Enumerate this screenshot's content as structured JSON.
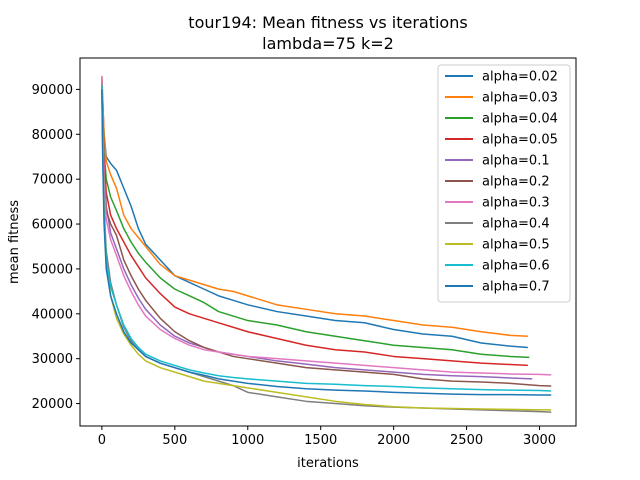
{
  "chart_data": {
    "type": "line",
    "title": "tour194: Mean fitness vs iterations",
    "subtitle": "lambda=75 k=2",
    "xlabel": "iterations",
    "ylabel": "mean fitness",
    "xlim": [
      -150,
      3250
    ],
    "ylim": [
      15000,
      97000
    ],
    "xticks": [
      0,
      500,
      1000,
      1500,
      2000,
      2500,
      3000
    ],
    "yticks": [
      20000,
      30000,
      40000,
      50000,
      60000,
      70000,
      80000,
      90000
    ],
    "grid": false,
    "legend_position": "top-right",
    "series": [
      {
        "name": "alpha=0.02",
        "color": "#1f77b4",
        "x": [
          0,
          5,
          15,
          30,
          60,
          100,
          150,
          200,
          250,
          300,
          400,
          500,
          600,
          700,
          800,
          900,
          1000,
          1200,
          1400,
          1600,
          1800,
          2000,
          2200,
          2400,
          2600,
          2800,
          2920
        ],
        "y": [
          92500,
          88000,
          80000,
          75000,
          73500,
          72000,
          68000,
          64000,
          59000,
          55500,
          52000,
          48500,
          47000,
          45500,
          44000,
          43000,
          42000,
          40500,
          39500,
          38500,
          38000,
          36500,
          35500,
          35000,
          33500,
          32800,
          32500
        ]
      },
      {
        "name": "alpha=0.03",
        "color": "#ff7f0e",
        "x": [
          0,
          5,
          15,
          30,
          60,
          100,
          150,
          200,
          250,
          300,
          400,
          500,
          600,
          700,
          800,
          900,
          1000,
          1200,
          1400,
          1600,
          1800,
          2000,
          2200,
          2400,
          2600,
          2800,
          2920
        ],
        "y": [
          93000,
          88500,
          80000,
          74000,
          71000,
          68000,
          62000,
          59000,
          57000,
          55000,
          51000,
          48500,
          47500,
          46500,
          45500,
          45000,
          44000,
          42000,
          41000,
          40000,
          39500,
          38500,
          37500,
          37000,
          36000,
          35200,
          35000
        ]
      },
      {
        "name": "alpha=0.04",
        "color": "#2ca02c",
        "x": [
          0,
          5,
          15,
          30,
          60,
          100,
          150,
          200,
          250,
          300,
          400,
          500,
          600,
          700,
          800,
          900,
          1000,
          1200,
          1400,
          1600,
          1800,
          2000,
          2200,
          2400,
          2600,
          2800,
          2930
        ],
        "y": [
          91000,
          86000,
          76000,
          70000,
          66000,
          63000,
          59000,
          56000,
          53500,
          51500,
          48000,
          45500,
          44000,
          42500,
          40500,
          39500,
          38500,
          37500,
          36000,
          35000,
          34000,
          33000,
          32500,
          32000,
          31000,
          30500,
          30300
        ]
      },
      {
        "name": "alpha=0.05",
        "color": "#d62728",
        "x": [
          0,
          5,
          15,
          30,
          60,
          100,
          150,
          200,
          250,
          300,
          400,
          500,
          600,
          700,
          800,
          900,
          1000,
          1200,
          1400,
          1600,
          1800,
          2000,
          2200,
          2400,
          2600,
          2800,
          2920
        ],
        "y": [
          91000,
          85000,
          74000,
          67000,
          62000,
          59000,
          56000,
          53000,
          50500,
          48000,
          44500,
          41500,
          40000,
          39000,
          38000,
          37000,
          36000,
          34500,
          33000,
          32000,
          31500,
          30500,
          30000,
          29500,
          29000,
          28700,
          28500
        ]
      },
      {
        "name": "alpha=0.1",
        "color": "#9467bd",
        "x": [
          0,
          5,
          15,
          30,
          60,
          100,
          150,
          200,
          250,
          300,
          400,
          500,
          600,
          700,
          800,
          900,
          1000,
          1200,
          1400,
          1600,
          1800,
          2000,
          2200,
          2400,
          2600,
          2800,
          2950
        ],
        "y": [
          91000,
          84000,
          72000,
          64000,
          58000,
          54500,
          50000,
          46500,
          43500,
          41000,
          37500,
          35000,
          33500,
          32500,
          31500,
          31000,
          30500,
          29500,
          28800,
          28000,
          27500,
          27000,
          26500,
          26200,
          26000,
          25700,
          25500
        ]
      },
      {
        "name": "alpha=0.2",
        "color": "#8c564b",
        "x": [
          0,
          5,
          15,
          30,
          60,
          100,
          150,
          200,
          250,
          300,
          400,
          500,
          600,
          700,
          800,
          900,
          1000,
          1200,
          1400,
          1600,
          1800,
          2000,
          2200,
          2400,
          2600,
          2800,
          3000,
          3080
        ],
        "y": [
          92000,
          84000,
          72000,
          63000,
          60000,
          57500,
          52000,
          48500,
          45500,
          43000,
          39000,
          36000,
          34000,
          32500,
          31500,
          30500,
          30000,
          29000,
          28000,
          27500,
          27000,
          26500,
          25500,
          25000,
          24800,
          24500,
          24000,
          23900
        ]
      },
      {
        "name": "alpha=0.3",
        "color": "#e377c2",
        "x": [
          0,
          5,
          15,
          30,
          60,
          100,
          150,
          200,
          250,
          300,
          400,
          500,
          600,
          700,
          800,
          900,
          1000,
          1200,
          1400,
          1600,
          1800,
          2000,
          2200,
          2400,
          2600,
          2800,
          3000,
          3080
        ],
        "y": [
          93000,
          83000,
          70000,
          61000,
          56500,
          53000,
          48500,
          45000,
          42000,
          39500,
          36500,
          34500,
          33000,
          32000,
          31500,
          31000,
          30500,
          30000,
          29500,
          29000,
          28500,
          28000,
          27500,
          27000,
          26800,
          26600,
          26500,
          26400
        ]
      },
      {
        "name": "alpha=0.4",
        "color": "#7f7f7f",
        "x": [
          0,
          5,
          15,
          30,
          60,
          100,
          150,
          200,
          250,
          300,
          400,
          500,
          600,
          700,
          800,
          900,
          1000,
          1200,
          1400,
          1600,
          1800,
          2000,
          2200,
          2400,
          2600,
          2800,
          3000,
          3080
        ],
        "y": [
          91000,
          80000,
          64000,
          54000,
          47000,
          42000,
          37000,
          34000,
          32000,
          30500,
          29000,
          28000,
          27000,
          26000,
          25000,
          24000,
          22500,
          21500,
          20500,
          20000,
          19500,
          19200,
          19000,
          18800,
          18600,
          18400,
          18200,
          18100
        ]
      },
      {
        "name": "alpha=0.5",
        "color": "#bcbd22",
        "x": [
          0,
          5,
          15,
          30,
          60,
          100,
          150,
          200,
          250,
          300,
          400,
          500,
          600,
          700,
          800,
          900,
          1000,
          1200,
          1400,
          1600,
          1800,
          2000,
          2200,
          2400,
          2600,
          2800,
          3000,
          3080
        ],
        "y": [
          91000,
          80000,
          63000,
          52000,
          44000,
          39000,
          35500,
          33000,
          31000,
          29500,
          28000,
          27000,
          26000,
          25000,
          24500,
          24000,
          23500,
          22500,
          21500,
          20500,
          19800,
          19300,
          19000,
          18900,
          18800,
          18700,
          18600,
          18600
        ]
      },
      {
        "name": "alpha=0.6",
        "color": "#17becf",
        "x": [
          0,
          5,
          15,
          30,
          60,
          100,
          150,
          200,
          250,
          300,
          400,
          500,
          600,
          700,
          800,
          900,
          1000,
          1200,
          1400,
          1600,
          1800,
          2000,
          2200,
          2400,
          2600,
          2800,
          3000,
          3080
        ],
        "y": [
          91000,
          78000,
          62000,
          52000,
          46000,
          42000,
          37500,
          34500,
          32500,
          31000,
          29500,
          28500,
          27500,
          26800,
          26200,
          25800,
          25500,
          25000,
          24500,
          24300,
          24000,
          23800,
          23500,
          23300,
          23100,
          23000,
          22900,
          22800
        ]
      },
      {
        "name": "alpha=0.7",
        "color": "#1f77b4",
        "x": [
          0,
          5,
          15,
          30,
          60,
          100,
          150,
          200,
          250,
          300,
          400,
          500,
          600,
          700,
          800,
          900,
          1000,
          1200,
          1400,
          1600,
          1800,
          2000,
          2200,
          2400,
          2600,
          2800,
          3000,
          3080
        ],
        "y": [
          90000,
          76000,
          60000,
          50000,
          44000,
          40000,
          36000,
          33500,
          32000,
          30500,
          29000,
          28000,
          27000,
          26300,
          25500,
          25000,
          24500,
          23800,
          23300,
          23000,
          22800,
          22500,
          22300,
          22100,
          22000,
          22000,
          21900,
          21900
        ]
      }
    ]
  }
}
